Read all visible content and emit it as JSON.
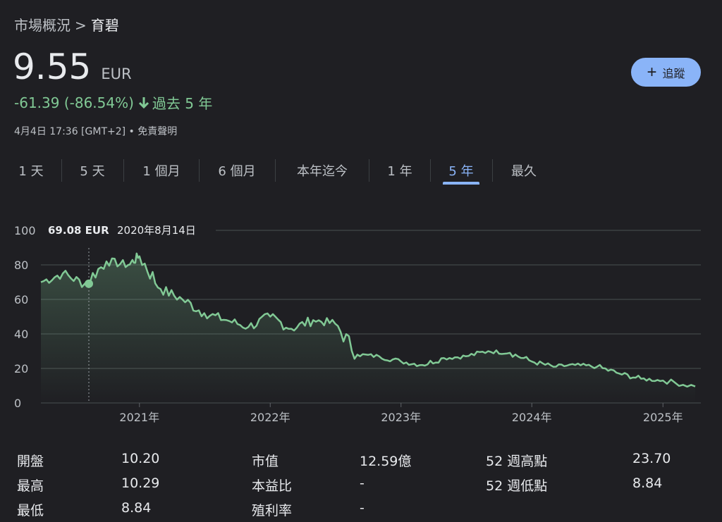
{
  "breadcrumb": {
    "parent": "市場概況",
    "separator": ">",
    "current": "育碧"
  },
  "quote": {
    "price": "9.55",
    "currency": "EUR",
    "change": "-61.39 (-86.54%)",
    "period": "過去 5 年",
    "timestamp": "4月4日 17:36 [GMT+2] • 免責聲明"
  },
  "follow_button": {
    "label": "追蹤"
  },
  "tabs": [
    {
      "label": "1 天"
    },
    {
      "label": "5 天"
    },
    {
      "label": "1 個月"
    },
    {
      "label": "6 個月"
    },
    {
      "label": "本年迄今"
    },
    {
      "label": "1 年"
    },
    {
      "label": "5 年",
      "active": true
    },
    {
      "label": "最久"
    }
  ],
  "tooltip": {
    "value": "69.08 EUR",
    "date": "2020年8月14日"
  },
  "colors": {
    "line": "#81c995",
    "accent": "#8ab4f8",
    "negative": "#81c995"
  },
  "chart_data": {
    "type": "area",
    "y_ticks": [
      "100",
      "80",
      "60",
      "40",
      "20",
      "0"
    ],
    "x_ticks": [
      "2021年",
      "2022年",
      "2023年",
      "2024年",
      "2025年"
    ],
    "ylim": [
      0,
      100
    ],
    "grid": true,
    "x": [
      "2020-04",
      "2020-06",
      "2020-08",
      "2020-10",
      "2020-12",
      "2021-01",
      "2021-03",
      "2021-05",
      "2021-07",
      "2021-09",
      "2021-11",
      "2022-01",
      "2022-03",
      "2022-05",
      "2022-07",
      "2022-09",
      "2022-11",
      "2023-01",
      "2023-03",
      "2023-05",
      "2023-07",
      "2023-09",
      "2023-11",
      "2024-01",
      "2024-03",
      "2024-05",
      "2024-07",
      "2024-09",
      "2024-11",
      "2025-01",
      "2025-04"
    ],
    "values": [
      70,
      75,
      69,
      82,
      80,
      85,
      66,
      60,
      52,
      48,
      44,
      50,
      43,
      48,
      46,
      28,
      27,
      24,
      22,
      26,
      27,
      30,
      29,
      24,
      21,
      22,
      21,
      17,
      14,
      13,
      9.55
    ]
  },
  "stats": [
    {
      "label": "開盤",
      "value": "10.20"
    },
    {
      "label": "最高",
      "value": "10.29"
    },
    {
      "label": "最低",
      "value": "8.84"
    },
    {
      "label": "市值",
      "value": "12.59億"
    },
    {
      "label": "本益比",
      "value": "-"
    },
    {
      "label": "殖利率",
      "value": "-"
    },
    {
      "label": "52 週高點",
      "value": "23.70"
    },
    {
      "label": "52 週低點",
      "value": "8.84"
    }
  ]
}
